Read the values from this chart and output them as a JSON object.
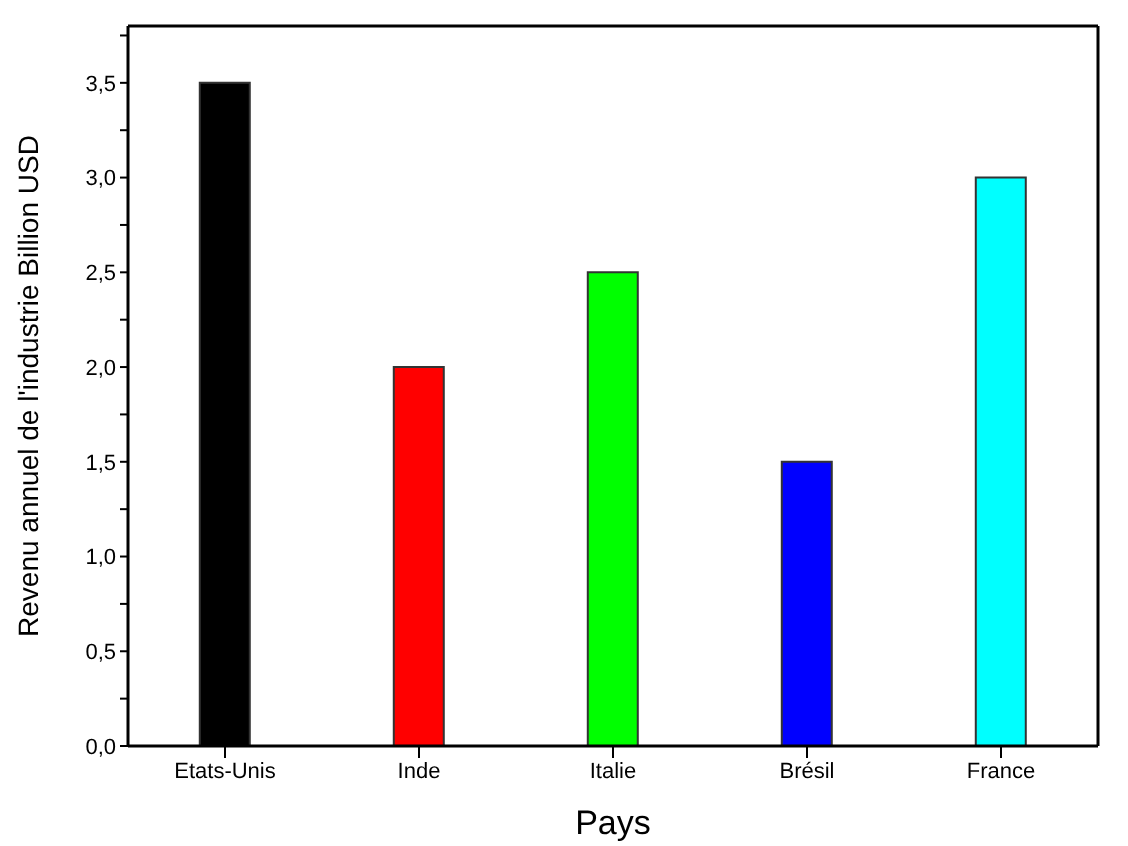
{
  "chart_data": {
    "type": "bar",
    "xlabel": "Pays",
    "ylabel": "Revenu annuel de l'industrie Billion USD",
    "categories": [
      "Etats-Unis",
      "Inde",
      "Italie",
      "Brésil",
      "France"
    ],
    "values": [
      3.5,
      2.0,
      2.5,
      1.5,
      3.0
    ],
    "colors": [
      "#000000",
      "#ff0000",
      "#00ff00",
      "#0000ff",
      "#00ffff"
    ],
    "ylim": [
      0,
      3.8
    ],
    "yticks": [
      {
        "value": 0,
        "label": "0,0"
      },
      {
        "value": 0.25,
        "label": null
      },
      {
        "value": 0.5,
        "label": "0,5"
      },
      {
        "value": 0.75,
        "label": null
      },
      {
        "value": 1,
        "label": "1,0"
      },
      {
        "value": 1.25,
        "label": null
      },
      {
        "value": 1.5,
        "label": "1,5"
      },
      {
        "value": 1.75,
        "label": null
      },
      {
        "value": 2,
        "label": "2,0"
      },
      {
        "value": 2.25,
        "label": null
      },
      {
        "value": 2.5,
        "label": "2,5"
      },
      {
        "value": 2.75,
        "label": null
      },
      {
        "value": 3,
        "label": "3,0"
      },
      {
        "value": 3.25,
        "label": null
      },
      {
        "value": 3.5,
        "label": "3,5"
      },
      {
        "value": 3.75,
        "label": null
      }
    ],
    "grid": false
  }
}
